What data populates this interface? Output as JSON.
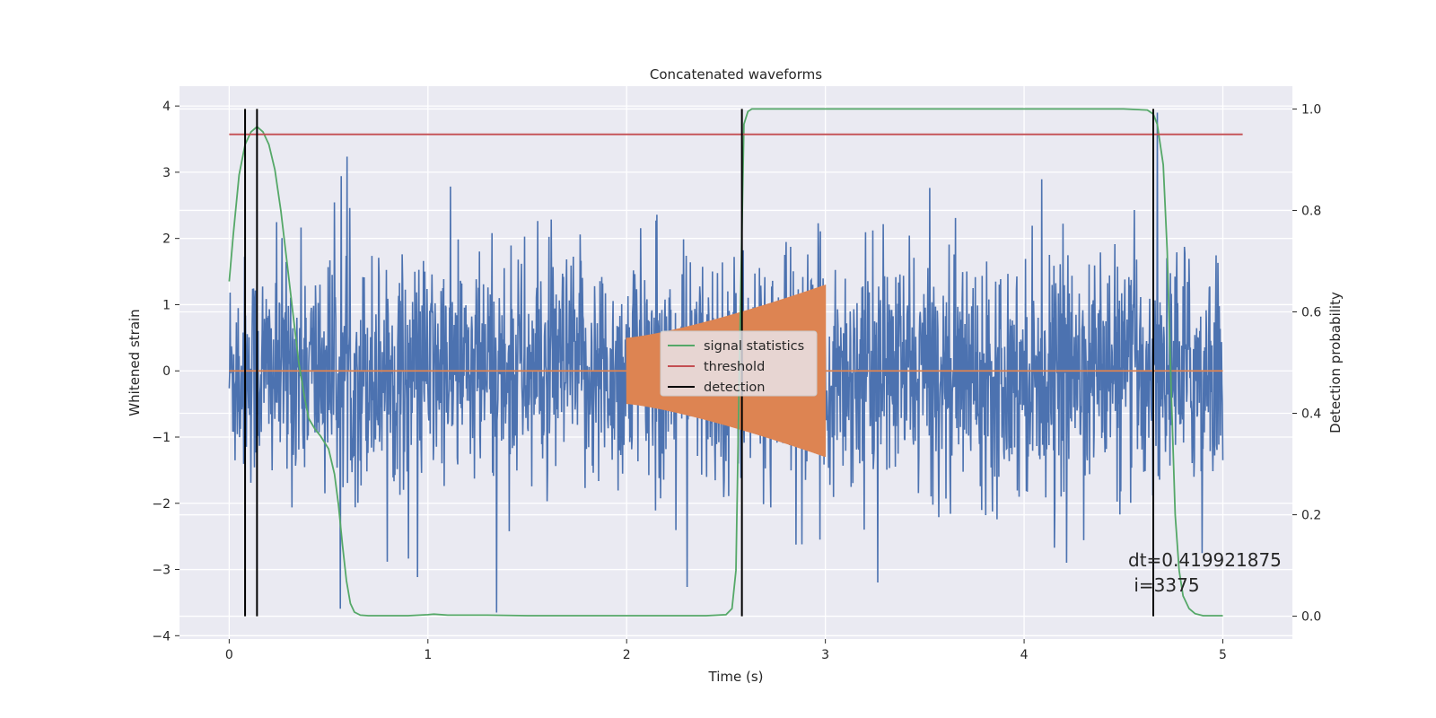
{
  "chart_data": {
    "type": "line",
    "title": "Concatenated waveforms",
    "xlabel": "Time (s)",
    "ylabel_left": "Whitened strain",
    "ylabel_right": "Detection probability",
    "xlim": [
      -0.25,
      5.35
    ],
    "ylim_left": [
      -4.05,
      4.3
    ],
    "ylim_right": [
      -0.045,
      1.045
    ],
    "x_ticks": [
      0,
      1,
      2,
      3,
      4,
      5
    ],
    "y_ticks_left": [
      4,
      3,
      2,
      1,
      0,
      -1,
      -2,
      -3,
      -4
    ],
    "y_ticks_left_labels": [
      "4",
      "3",
      "2",
      "1",
      "0",
      "−1",
      "−2",
      "−3",
      "−4"
    ],
    "y_ticks_right": [
      1.0,
      0.8,
      0.6,
      0.4,
      0.2,
      0.0
    ],
    "y_ticks_right_labels": [
      "1.0",
      "0.8",
      "0.6",
      "0.4",
      "0.2",
      "0.0"
    ],
    "grid": true,
    "legend_position": "center",
    "colors": {
      "strain": "#4c72b0",
      "chirp": "#dd8452",
      "signal_statistics": "#55a868",
      "threshold": "#c44e52",
      "detection": "#000000",
      "background": "#eaeaf2",
      "grid": "#ffffff"
    },
    "legend": [
      {
        "label": "signal statistics",
        "color": "#55a868"
      },
      {
        "label": "threshold",
        "color": "#c44e52"
      },
      {
        "label": "detection",
        "color": "#000000"
      }
    ],
    "series": [
      {
        "axis": "right",
        "color": "#55a868",
        "x": [
          0.0,
          0.02,
          0.05,
          0.08,
          0.11,
          0.14,
          0.17,
          0.2,
          0.23,
          0.26,
          0.29,
          0.32,
          0.35,
          0.38,
          0.4,
          0.43,
          0.46,
          0.5,
          0.53,
          0.55,
          0.57,
          0.59,
          0.61,
          0.63,
          0.66,
          0.7,
          0.8,
          0.9,
          1.0,
          1.03,
          1.1,
          1.3,
          1.5,
          2.0,
          2.4,
          2.5,
          2.53,
          2.55,
          2.57,
          2.59,
          2.61,
          2.63,
          2.67,
          2.75,
          3.0,
          4.0,
          4.5,
          4.62,
          4.65,
          4.67,
          4.7,
          4.72,
          4.74,
          4.76,
          4.78,
          4.8,
          4.83,
          4.86,
          4.9,
          5.0
        ],
        "y": [
          0.66,
          0.75,
          0.87,
          0.93,
          0.955,
          0.965,
          0.955,
          0.93,
          0.88,
          0.8,
          0.7,
          0.6,
          0.5,
          0.43,
          0.39,
          0.37,
          0.355,
          0.33,
          0.28,
          0.22,
          0.14,
          0.07,
          0.025,
          0.008,
          0.002,
          0.001,
          0.001,
          0.001,
          0.003,
          0.004,
          0.002,
          0.002,
          0.001,
          0.001,
          0.001,
          0.003,
          0.015,
          0.09,
          0.55,
          0.97,
          0.995,
          1.0,
          1.0,
          1.0,
          1.0,
          1.0,
          1.0,
          0.998,
          0.99,
          0.97,
          0.89,
          0.72,
          0.45,
          0.2,
          0.09,
          0.04,
          0.015,
          0.005,
          0.001,
          0.001
        ]
      },
      {
        "axis": "right",
        "color": "#c44e52",
        "x": [
          0.0,
          5.1
        ],
        "y": [
          0.95,
          0.95
        ]
      }
    ],
    "strain_noise": {
      "t_start": 0.0,
      "t_end": 5.0,
      "typical_range": [
        -1.5,
        1.5
      ],
      "max": 3.9,
      "min": -3.65
    },
    "chirp": {
      "t_start": 2.0,
      "t_end": 3.0,
      "amp_start": 0.5,
      "amp_end": 1.3
    },
    "detections": [
      0.08,
      0.14,
      2.58,
      4.65
    ],
    "annotation": "dt=0.419921875\n i=3375"
  }
}
